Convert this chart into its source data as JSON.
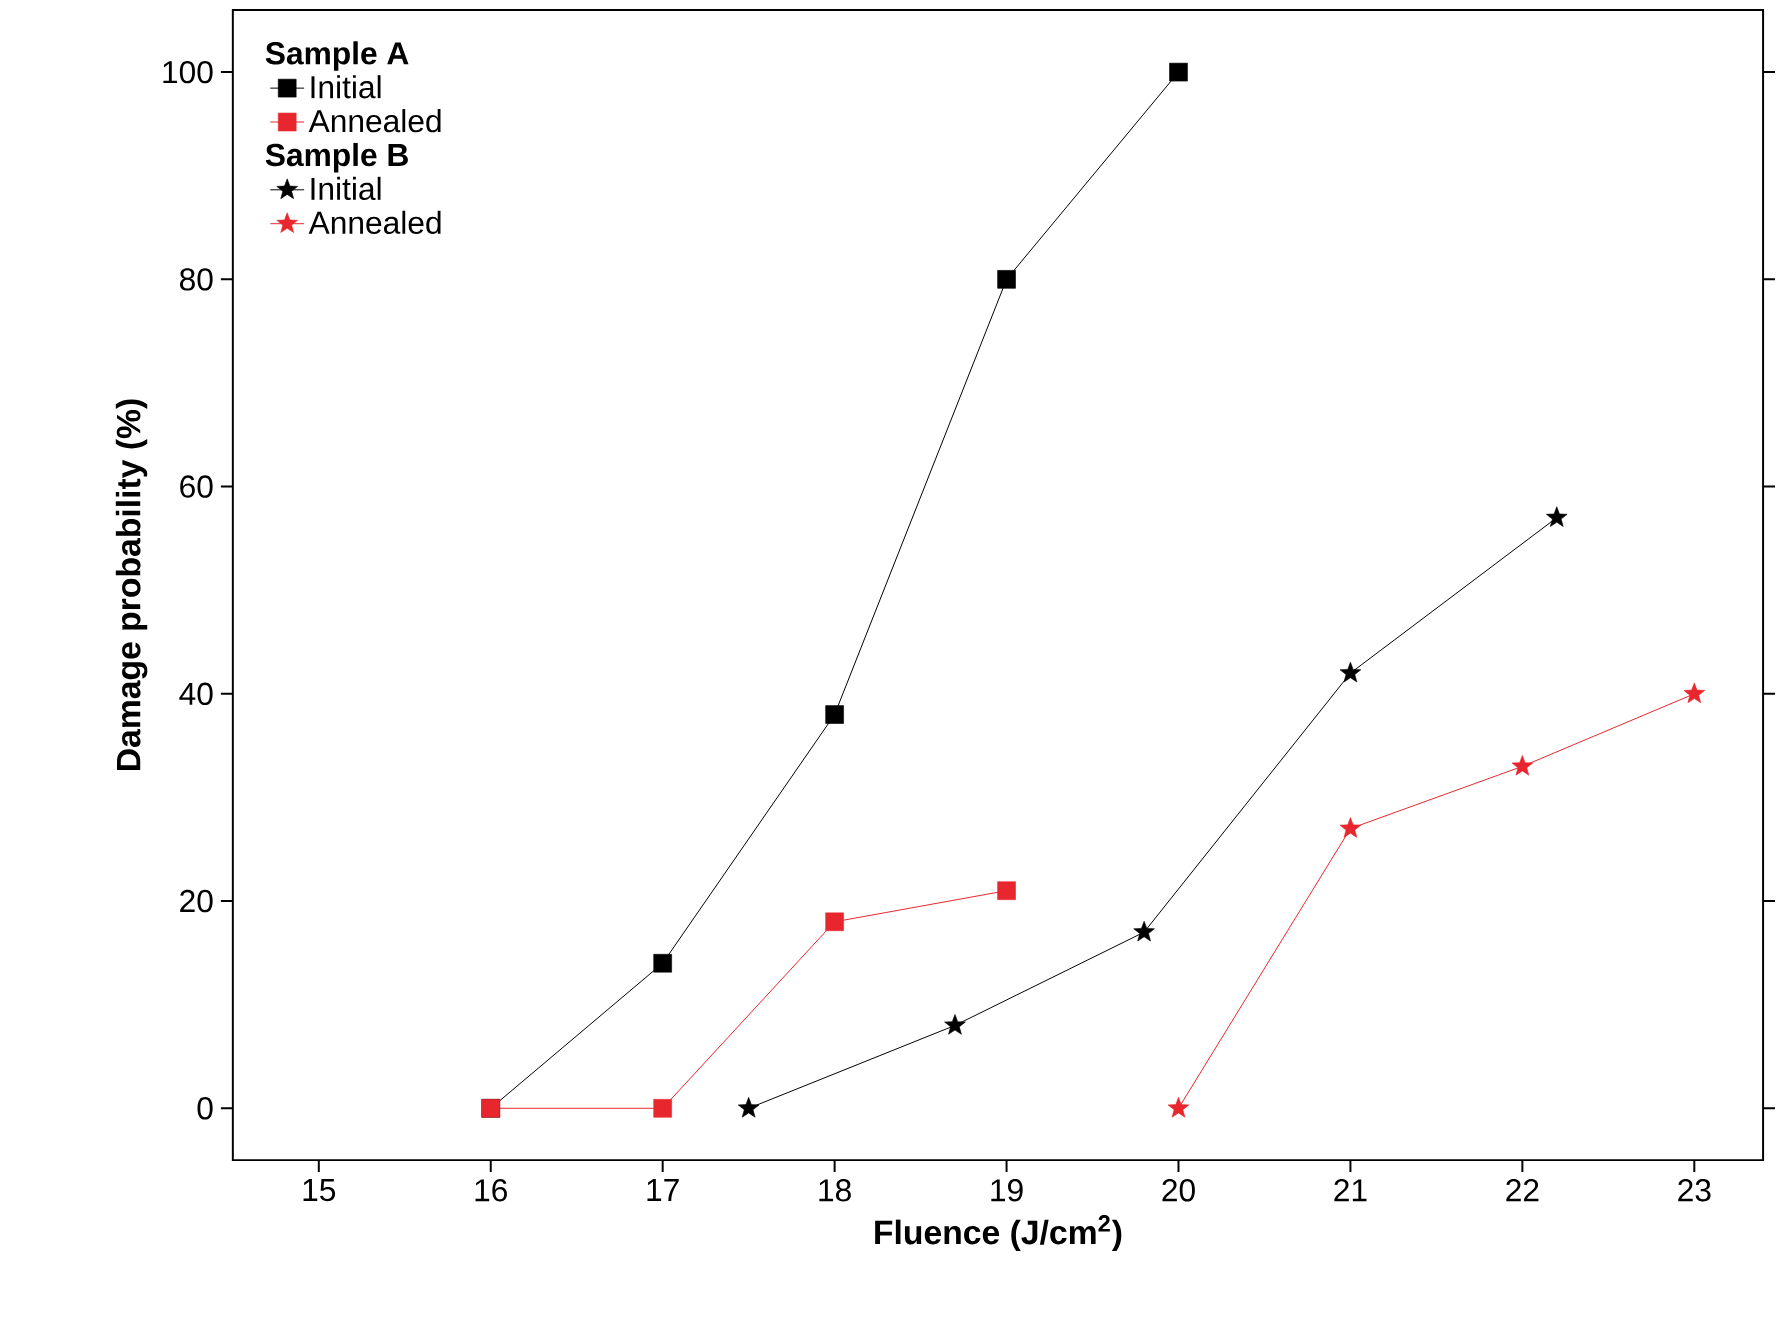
{
  "chart_data": {
    "type": "line",
    "xlabel": "Fluence (J/cm$^{2}$)",
    "ylabel": "Damage probability (%)",
    "xlim": [
      14.5,
      23.4
    ],
    "ylim": [
      -5,
      106
    ],
    "xticks": [
      15,
      16,
      17,
      18,
      19,
      20,
      21,
      22,
      23
    ],
    "yticks": [
      0,
      20,
      40,
      60,
      80,
      100
    ],
    "grid": false,
    "legend": "top left",
    "annotations": [
      "Sample A",
      "Sample B"
    ],
    "series": [
      {
        "name": "Initial",
        "color": "#000000",
        "marker": "square",
        "x": [
          16,
          17,
          18,
          19,
          20
        ],
        "values": [
          0,
          14,
          38,
          80,
          100
        ]
      },
      {
        "name": "Annealed",
        "color": "#e8262d",
        "marker": "square",
        "x": [
          16,
          17,
          18,
          19
        ],
        "values": [
          0,
          0,
          18,
          21
        ]
      },
      {
        "name": "Initial",
        "color": "#000000",
        "marker": "star",
        "x": [
          17.5,
          18.7,
          19.8,
          21,
          22.2
        ],
        "values": [
          0,
          8,
          17,
          42,
          57
        ]
      },
      {
        "name": "Annealed",
        "color": "#e8262d",
        "marker": "star",
        "x": [
          20,
          21,
          22,
          23
        ],
        "values": [
          0,
          27,
          33,
          40
        ]
      }
    ]
  }
}
